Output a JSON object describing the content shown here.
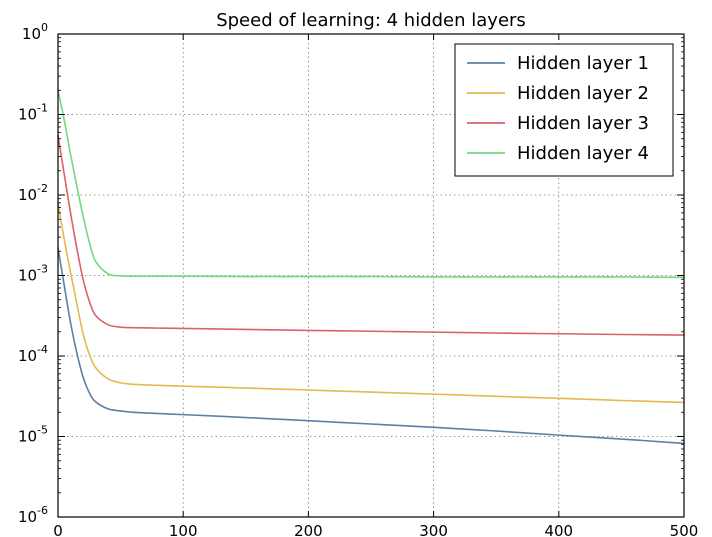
{
  "chart_data": {
    "type": "line",
    "title": "Speed of learning: 4 hidden layers",
    "xlabel": "",
    "ylabel": "",
    "xlim": [
      0,
      500
    ],
    "ylim": [
      1e-06,
      1
    ],
    "yscale": "log",
    "grid": true,
    "legend_position": "top-right",
    "x_ticks": [
      0,
      100,
      200,
      300,
      400,
      500
    ],
    "x_tick_labels": [
      "0",
      "100",
      "200",
      "300",
      "400",
      "500"
    ],
    "y_ticks": [
      {
        "value": 1e-06,
        "base": "10",
        "exp": "-6"
      },
      {
        "value": 1e-05,
        "base": "10",
        "exp": "-5"
      },
      {
        "value": 0.0001,
        "base": "10",
        "exp": "-4"
      },
      {
        "value": 0.001,
        "base": "10",
        "exp": "-3"
      },
      {
        "value": 0.01,
        "base": "10",
        "exp": "-2"
      },
      {
        "value": 0.1,
        "base": "10",
        "exp": "-1"
      },
      {
        "value": 1,
        "base": "10",
        "exp": "0"
      }
    ],
    "series": [
      {
        "name": "Hidden layer 1",
        "color": "#5b80a4",
        "x": [
          0,
          5,
          10,
          15,
          20,
          25,
          30,
          40,
          50,
          60,
          80,
          100,
          150,
          200,
          250,
          300,
          350,
          400,
          450,
          500
        ],
        "y": [
          0.0022,
          0.00075,
          0.00026,
          0.00011,
          5.5e-05,
          3.5e-05,
          2.7e-05,
          2.2e-05,
          2.08e-05,
          2e-05,
          1.93e-05,
          1.87e-05,
          1.72e-05,
          1.57e-05,
          1.43e-05,
          1.3e-05,
          1.17e-05,
          1.04e-05,
          9.3e-06,
          8.2e-06
        ]
      },
      {
        "name": "Hidden layer 2",
        "color": "#e6b84f",
        "x": [
          0,
          5,
          10,
          15,
          20,
          25,
          30,
          40,
          50,
          60,
          80,
          100,
          150,
          200,
          250,
          300,
          350,
          400,
          450,
          500
        ],
        "y": [
          0.008,
          0.0028,
          0.0011,
          0.00045,
          0.00019,
          0.000105,
          7.2e-05,
          5.2e-05,
          4.65e-05,
          4.45e-05,
          4.32e-05,
          4.22e-05,
          4e-05,
          3.78e-05,
          3.56e-05,
          3.36e-05,
          3.16e-05,
          2.98e-05,
          2.8e-05,
          2.65e-05
        ]
      },
      {
        "name": "Hidden layer 3",
        "color": "#d9626b",
        "x": [
          0,
          5,
          10,
          15,
          20,
          25,
          30,
          40,
          50,
          60,
          80,
          100,
          150,
          200,
          250,
          300,
          350,
          400,
          450,
          500
        ],
        "y": [
          0.055,
          0.018,
          0.006,
          0.0022,
          0.0009,
          0.00048,
          0.00032,
          0.000245,
          0.000228,
          0.000225,
          0.000222,
          0.00022,
          0.000214,
          0.000208,
          0.000203,
          0.000198,
          0.000193,
          0.000189,
          0.000185,
          0.000182
        ]
      },
      {
        "name": "Hidden layer 4",
        "color": "#74d97c",
        "x": [
          0,
          5,
          10,
          15,
          20,
          25,
          30,
          40,
          50,
          60,
          80,
          100,
          150,
          200,
          250,
          300,
          350,
          400,
          450,
          500
        ],
        "y": [
          0.2,
          0.085,
          0.032,
          0.013,
          0.0055,
          0.0026,
          0.0015,
          0.00105,
          0.00099,
          0.00098,
          0.00098,
          0.00098,
          0.00097,
          0.00097,
          0.00097,
          0.00096,
          0.00096,
          0.00096,
          0.00096,
          0.00095
        ]
      }
    ]
  }
}
